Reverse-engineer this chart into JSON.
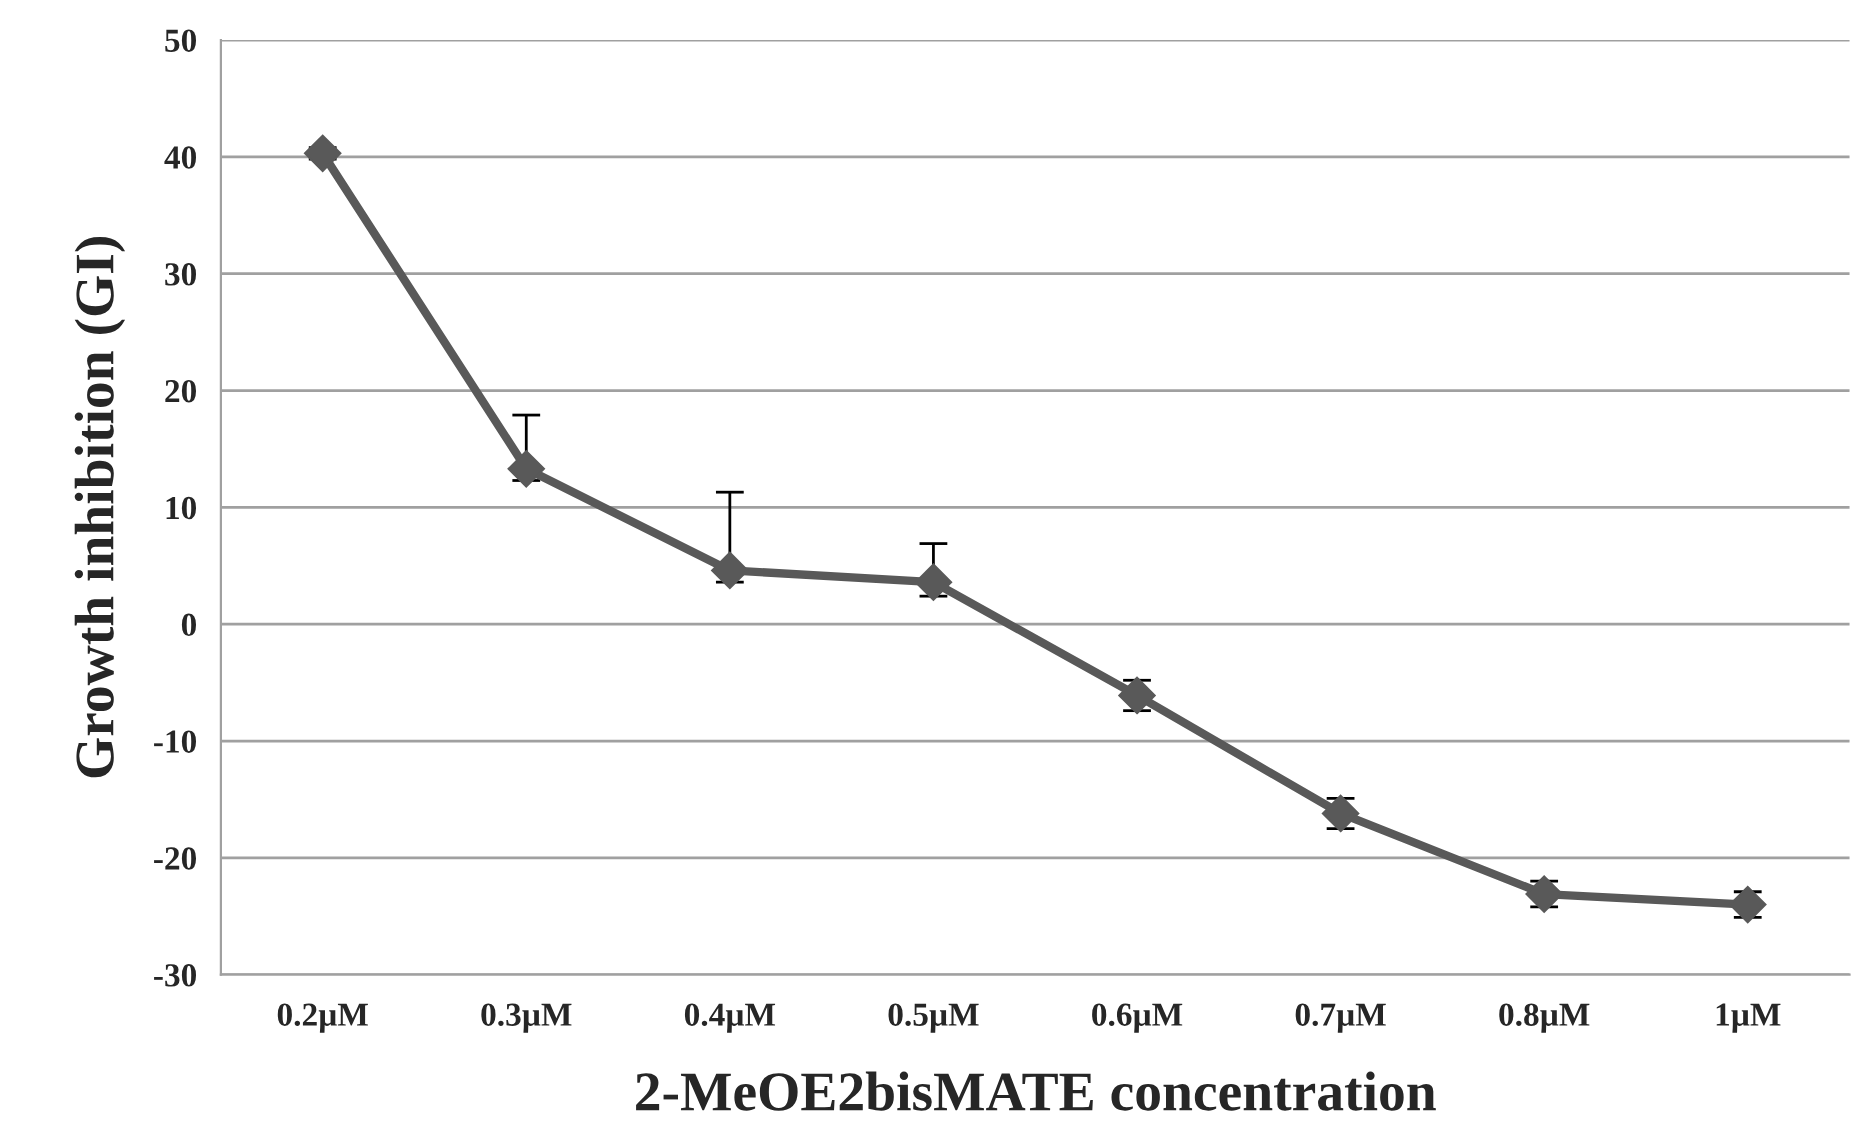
{
  "chart_data": {
    "type": "line",
    "xlabel": "2-MeOE2bisMATE concentration",
    "ylabel": "Growth inhibition (GI)",
    "categories": [
      "0.2µM",
      "0.3µM",
      "0.4µM",
      "0.5µM",
      "0.6µM",
      "0.7µM",
      "0.8µM",
      "1µM"
    ],
    "series": [
      {
        "color": "#595959",
        "values": [
          40.3,
          13.3,
          4.6,
          3.6,
          -6.1,
          -16.2,
          -23.1,
          -24.0
        ],
        "errors": [
          0.5,
          [
            12.3,
            17.9
          ],
          [
            3.6,
            11.3
          ],
          [
            2.4,
            6.9
          ],
          1.3,
          1.3,
          1.1,
          1.1
        ]
      }
    ],
    "ylim": [
      -30,
      50
    ],
    "yticks": [
      -30,
      -20,
      -10,
      0,
      10,
      20,
      30,
      40,
      50
    ],
    "grid": "y",
    "marker": "diamond",
    "line_style": "solid",
    "legend": false
  }
}
